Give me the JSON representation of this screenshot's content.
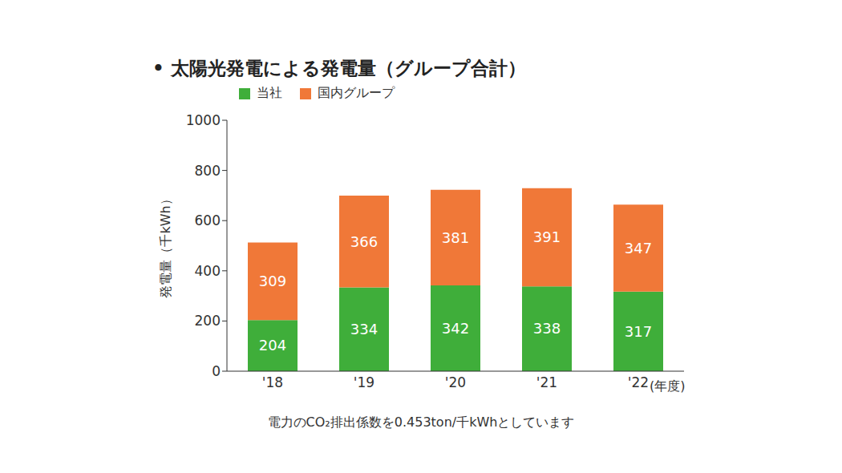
{
  "chart_data": {
    "type": "bar",
    "title": "• 太陽光発電による発電量（グループ合計）",
    "categories": [
      "'18",
      "'19",
      "'20",
      "'21",
      "'22"
    ],
    "series": [
      {
        "name": "当社",
        "color": "#3fae3a",
        "values": [
          204,
          334,
          342,
          338,
          317
        ]
      },
      {
        "name": "国内グループ",
        "color": "#f07838",
        "values": [
          309,
          366,
          381,
          391,
          347
        ]
      }
    ],
    "y_label": "発電量（千kWh）",
    "x_label": "(年度)",
    "note": "電力のCO₂排出係数を0.453ton/千kWhとしています",
    "ylim": [
      0,
      1000
    ],
    "yticks": [
      0,
      200,
      400,
      600,
      800,
      1000
    ],
    "stacked": true,
    "data_labels": true,
    "grid": false
  }
}
